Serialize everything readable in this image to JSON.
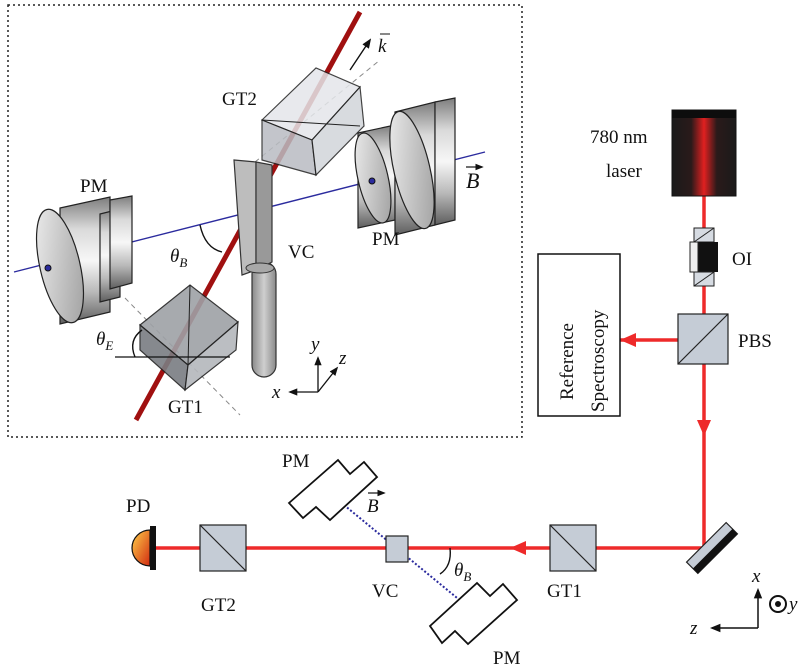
{
  "inset": {
    "labels": {
      "gt2": "GT2",
      "gt1": "GT1",
      "pm_left": "PM",
      "pm_right": "PM",
      "vc": "VC",
      "theta_b": "θ",
      "theta_b_sub": "B",
      "theta_e": "θ",
      "theta_e_sub": "E",
      "k_vec": "k",
      "b_vec": "B",
      "axis_x": "x",
      "axis_y": "y",
      "axis_z": "z"
    }
  },
  "main": {
    "laser_label_line1": "780 nm",
    "laser_label_line2": "laser",
    "oi": "OI",
    "pbs": "PBS",
    "reference_line1": "Reference",
    "reference_line2": "Spectroscopy",
    "pd": "PD",
    "gt2": "GT2",
    "gt1": "GT1",
    "vc": "VC",
    "pm_top": "PM",
    "pm_bottom": "PM",
    "b_vec": "B",
    "theta_b": "θ",
    "theta_b_sub": "B",
    "axis_x": "x",
    "axis_y": "y",
    "axis_z": "z"
  },
  "colors": {
    "beam": "#ee2a2a",
    "inset_beam": "#a01010",
    "b_field_line": "#2b2b9e",
    "cube": "#c5ccd6",
    "metal_light": "#e8e8e8",
    "metal_dark": "#7a7a7a"
  }
}
